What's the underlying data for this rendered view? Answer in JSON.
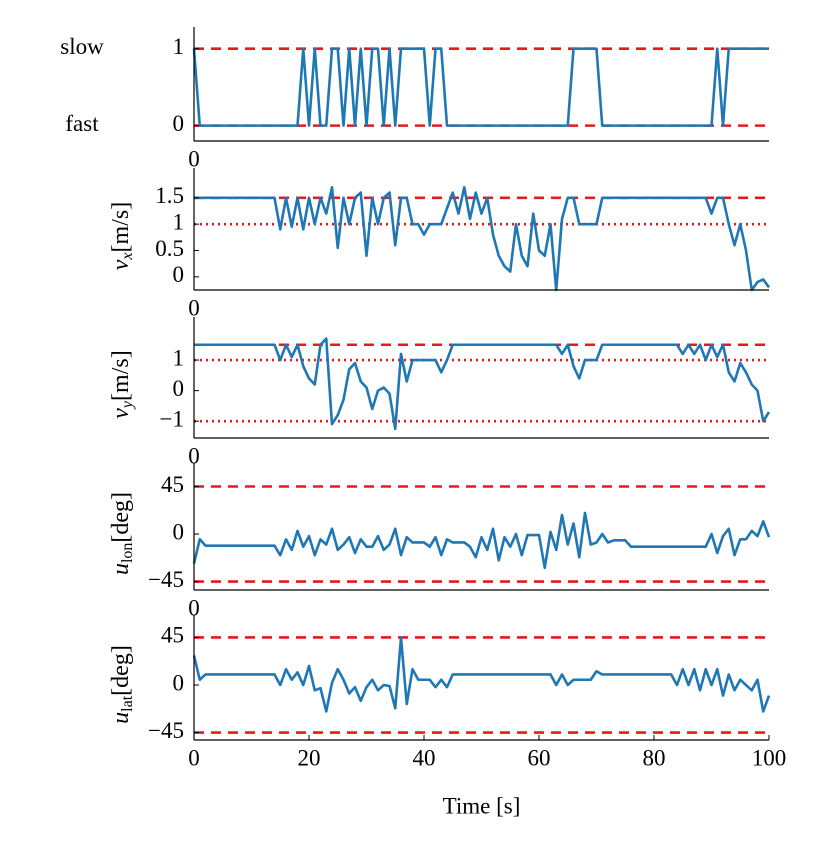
{
  "chart_data": [
    {
      "type": "line",
      "xlim": [
        0,
        100
      ],
      "xticks": [
        0
      ],
      "ylim": [
        -0.2,
        1.1
      ],
      "yticks": [
        0,
        1
      ],
      "state_labels": [
        {
          "value": 0,
          "label": "fast"
        },
        {
          "value": 1,
          "label": "slow"
        }
      ],
      "hlines": [
        {
          "value": 0,
          "style": "dashed"
        },
        {
          "value": 1,
          "style": "dashed"
        }
      ],
      "ref_color": "#e8191c",
      "x": [
        0,
        1,
        2,
        3,
        4,
        5,
        6,
        7,
        8,
        9,
        10,
        11,
        12,
        13,
        14,
        15,
        16,
        17,
        18,
        19,
        20,
        21,
        22,
        23,
        24,
        25,
        26,
        27,
        28,
        29,
        30,
        31,
        32,
        33,
        34,
        35,
        36,
        37,
        38,
        39,
        40,
        41,
        42,
        43,
        44,
        45,
        46,
        47,
        48,
        49,
        50,
        51,
        52,
        53,
        54,
        55,
        56,
        57,
        58,
        59,
        60,
        61,
        62,
        63,
        64,
        65,
        66,
        67,
        68,
        69,
        70,
        71,
        72,
        73,
        74,
        75,
        76,
        77,
        78,
        79,
        80,
        81,
        82,
        83,
        84,
        85,
        86,
        87,
        88,
        89,
        90,
        91,
        92,
        93,
        94,
        95,
        96,
        97,
        98,
        99,
        100
      ],
      "series": [
        {
          "color": "#1f77b4",
          "values": [
            1,
            0,
            0,
            0,
            0,
            0,
            0,
            0,
            0,
            0,
            0,
            0,
            0,
            0,
            0,
            0,
            0,
            0,
            0,
            1,
            0,
            1,
            0,
            0,
            1,
            1,
            0,
            1,
            0,
            1,
            0,
            1,
            1,
            0,
            1,
            0,
            1,
            1,
            1,
            1,
            1,
            0,
            1,
            1,
            0,
            0,
            0,
            0,
            0,
            0,
            0,
            0,
            0,
            0,
            0,
            0,
            0,
            0,
            0,
            0,
            0,
            0,
            0,
            0,
            0,
            0,
            1,
            1,
            1,
            1,
            1,
            0,
            0,
            0,
            0,
            0,
            0,
            0,
            0,
            0,
            0,
            0,
            0,
            0,
            0,
            0,
            0,
            0,
            0,
            0,
            0,
            1,
            0,
            1,
            1,
            1,
            1,
            1,
            1,
            1,
            1
          ]
        }
      ]
    },
    {
      "type": "line",
      "xlim": [
        0,
        100
      ],
      "xticks": [
        0
      ],
      "ylim": [
        -0.25,
        1.8
      ],
      "yticks": [
        0,
        0.5,
        1,
        1.5
      ],
      "ylabel": {
        "symbol": "v",
        "sub": "x",
        "unit": "[m/s]"
      },
      "hlines": [
        {
          "value": 1.5,
          "style": "dashed"
        },
        {
          "value": 1,
          "style": "dotted"
        }
      ],
      "ref_color": "#e8191c",
      "x": [
        0,
        1,
        2,
        3,
        4,
        5,
        6,
        7,
        8,
        9,
        10,
        11,
        12,
        13,
        14,
        15,
        16,
        17,
        18,
        19,
        20,
        21,
        22,
        23,
        24,
        25,
        26,
        27,
        28,
        29,
        30,
        31,
        32,
        33,
        34,
        35,
        36,
        37,
        38,
        39,
        40,
        41,
        42,
        43,
        44,
        45,
        46,
        47,
        48,
        49,
        50,
        51,
        52,
        53,
        54,
        55,
        56,
        57,
        58,
        59,
        60,
        61,
        62,
        63,
        64,
        65,
        66,
        67,
        68,
        69,
        70,
        71,
        72,
        73,
        74,
        75,
        76,
        77,
        78,
        79,
        80,
        81,
        82,
        83,
        84,
        85,
        86,
        87,
        88,
        89,
        90,
        91,
        92,
        93,
        94,
        95,
        96,
        97,
        98,
        99,
        100
      ],
      "series": [
        {
          "color": "#1f77b4",
          "values": [
            1.5,
            1.5,
            1.5,
            1.5,
            1.5,
            1.5,
            1.5,
            1.5,
            1.5,
            1.5,
            1.5,
            1.5,
            1.5,
            1.5,
            1.5,
            0.9,
            1.5,
            0.95,
            1.5,
            0.9,
            1.5,
            1.0,
            1.5,
            1.2,
            1.7,
            0.55,
            1.5,
            1.0,
            1.5,
            1.6,
            0.4,
            1.5,
            1.0,
            1.5,
            1.6,
            0.6,
            1.5,
            1.5,
            1.0,
            1.0,
            0.8,
            1.0,
            1.0,
            1.0,
            1.3,
            1.6,
            1.2,
            1.7,
            1.1,
            1.6,
            1.2,
            1.5,
            0.8,
            0.4,
            0.2,
            0.1,
            1.0,
            0.4,
            0.2,
            1.2,
            0.5,
            0.4,
            1.0,
            -0.25,
            1.1,
            1.5,
            1.5,
            1.0,
            1.0,
            1.0,
            1.0,
            1.5,
            1.5,
            1.5,
            1.5,
            1.5,
            1.5,
            1.5,
            1.5,
            1.5,
            1.5,
            1.5,
            1.5,
            1.5,
            1.5,
            1.5,
            1.5,
            1.5,
            1.5,
            1.5,
            1.2,
            1.5,
            1.5,
            1.0,
            0.6,
            1.0,
            0.5,
            -0.25,
            -0.1,
            -0.05,
            -0.2
          ]
        }
      ]
    },
    {
      "type": "line",
      "xlim": [
        0,
        100
      ],
      "xticks": [
        0
      ],
      "ylim": [
        -1.55,
        1.95
      ],
      "yticks": [
        {
          "value": -1,
          "label": "−1"
        },
        0,
        1
      ],
      "ylabel": {
        "symbol": "v",
        "sub": "y",
        "unit": "[m/s]"
      },
      "hlines": [
        {
          "value": 1.5,
          "style": "dashed"
        },
        {
          "value": 1,
          "style": "dotted"
        },
        {
          "value": -1,
          "style": "dotted"
        }
      ],
      "ref_color": "#e8191c",
      "x": [
        0,
        1,
        2,
        3,
        4,
        5,
        6,
        7,
        8,
        9,
        10,
        11,
        12,
        13,
        14,
        15,
        16,
        17,
        18,
        19,
        20,
        21,
        22,
        23,
        24,
        25,
        26,
        27,
        28,
        29,
        30,
        31,
        32,
        33,
        34,
        35,
        36,
        37,
        38,
        39,
        40,
        41,
        42,
        43,
        44,
        45,
        46,
        47,
        48,
        49,
        50,
        51,
        52,
        53,
        54,
        55,
        56,
        57,
        58,
        59,
        60,
        61,
        62,
        63,
        64,
        65,
        66,
        67,
        68,
        69,
        70,
        71,
        72,
        73,
        74,
        75,
        76,
        77,
        78,
        79,
        80,
        81,
        82,
        83,
        84,
        85,
        86,
        87,
        88,
        89,
        90,
        91,
        92,
        93,
        94,
        95,
        96,
        97,
        98,
        99,
        100
      ],
      "series": [
        {
          "color": "#1f77b4",
          "values": [
            1.5,
            1.5,
            1.5,
            1.5,
            1.5,
            1.5,
            1.5,
            1.5,
            1.5,
            1.5,
            1.5,
            1.5,
            1.5,
            1.5,
            1.5,
            1.0,
            1.5,
            1.1,
            1.5,
            0.8,
            0.4,
            0.2,
            1.5,
            1.7,
            -1.1,
            -0.8,
            -0.3,
            0.7,
            0.9,
            0.3,
            0.1,
            -0.6,
            0.0,
            0.1,
            -0.1,
            -1.25,
            1.2,
            0.3,
            1.0,
            1.0,
            1.0,
            1.0,
            1.0,
            0.6,
            1.0,
            1.5,
            1.5,
            1.5,
            1.5,
            1.5,
            1.5,
            1.5,
            1.5,
            1.5,
            1.5,
            1.5,
            1.5,
            1.5,
            1.5,
            1.5,
            1.5,
            1.5,
            1.5,
            1.5,
            1.2,
            1.5,
            0.8,
            0.4,
            1.0,
            1.0,
            1.0,
            1.5,
            1.5,
            1.5,
            1.5,
            1.5,
            1.5,
            1.5,
            1.5,
            1.5,
            1.5,
            1.5,
            1.5,
            1.5,
            1.5,
            1.2,
            1.5,
            1.2,
            1.5,
            1.0,
            1.5,
            1.1,
            1.5,
            0.6,
            0.3,
            0.9,
            0.6,
            0.2,
            0.0,
            -1.0,
            -0.7
          ]
        }
      ]
    },
    {
      "type": "line",
      "xlim": [
        0,
        100
      ],
      "xticks": [
        0
      ],
      "ylim": [
        -53,
        54
      ],
      "yticks": [
        {
          "value": -45,
          "label": "−45"
        },
        0,
        45
      ],
      "ylabel": {
        "symbol": "u",
        "sub": "lon",
        "unit": "[deg]"
      },
      "hlines": [
        {
          "value": 45,
          "style": "dashed"
        },
        {
          "value": -45,
          "style": "dashed"
        }
      ],
      "ref_color": "#e8191c",
      "x": [
        0,
        1,
        2,
        3,
        4,
        5,
        6,
        7,
        8,
        9,
        10,
        11,
        12,
        13,
        14,
        15,
        16,
        17,
        18,
        19,
        20,
        21,
        22,
        23,
        24,
        25,
        26,
        27,
        28,
        29,
        30,
        31,
        32,
        33,
        34,
        35,
        36,
        37,
        38,
        39,
        40,
        41,
        42,
        43,
        44,
        45,
        46,
        47,
        48,
        49,
        50,
        51,
        52,
        53,
        54,
        55,
        56,
        57,
        58,
        59,
        60,
        61,
        62,
        63,
        64,
        65,
        66,
        67,
        68,
        69,
        70,
        71,
        72,
        73,
        74,
        75,
        76,
        77,
        78,
        79,
        80,
        81,
        82,
        83,
        84,
        85,
        86,
        87,
        88,
        89,
        90,
        91,
        92,
        93,
        94,
        95,
        96,
        97,
        98,
        99,
        100
      ],
      "series": [
        {
          "color": "#1f77b4",
          "values": [
            -28,
            -5,
            -11,
            -11,
            -11,
            -11,
            -11,
            -11,
            -11,
            -11,
            -11,
            -11,
            -11,
            -11,
            -11,
            -20,
            -5,
            -15,
            3,
            -12,
            -2,
            -20,
            -5,
            -10,
            5,
            -15,
            -10,
            -3,
            -18,
            -5,
            -12,
            -12,
            -2,
            -15,
            -10,
            5,
            -20,
            -3,
            -8,
            -8,
            -8,
            -12,
            -3,
            -20,
            -5,
            -8,
            -8,
            -8,
            -12,
            -22,
            -3,
            -15,
            5,
            -25,
            -3,
            -12,
            0,
            -20,
            -1,
            -1,
            -1,
            -32,
            2,
            -15,
            18,
            -10,
            10,
            -22,
            20,
            -10,
            -8,
            0,
            -8,
            -6,
            -6,
            -6,
            -12,
            -12,
            -12,
            -12,
            -12,
            -12,
            -12,
            -12,
            -12,
            -12,
            -12,
            -12,
            -12,
            -12,
            0,
            -18,
            -2,
            5,
            -20,
            -5,
            -5,
            3,
            -2,
            12,
            -3
          ]
        }
      ]
    },
    {
      "type": "line",
      "xlim": [
        0,
        100
      ],
      "xticks": [
        0,
        20,
        40,
        60,
        80,
        100
      ],
      "xlabel": "Time [s]",
      "ylim": [
        -52,
        53
      ],
      "yticks": [
        {
          "value": -45,
          "label": "−45"
        },
        0,
        45
      ],
      "ylabel": {
        "symbol": "u",
        "sub": "lat",
        "unit": "[deg]"
      },
      "hlines": [
        {
          "value": 45,
          "style": "dashed"
        },
        {
          "value": -45,
          "style": "dashed"
        }
      ],
      "ref_color": "#e8191c",
      "x": [
        0,
        1,
        2,
        3,
        4,
        5,
        6,
        7,
        8,
        9,
        10,
        11,
        12,
        13,
        14,
        15,
        16,
        17,
        18,
        19,
        20,
        21,
        22,
        23,
        24,
        25,
        26,
        27,
        28,
        29,
        30,
        31,
        32,
        33,
        34,
        35,
        36,
        37,
        38,
        39,
        40,
        41,
        42,
        43,
        44,
        45,
        46,
        47,
        48,
        49,
        50,
        51,
        52,
        53,
        54,
        55,
        56,
        57,
        58,
        59,
        60,
        61,
        62,
        63,
        64,
        65,
        66,
        67,
        68,
        69,
        70,
        71,
        72,
        73,
        74,
        75,
        76,
        77,
        78,
        79,
        80,
        81,
        82,
        83,
        84,
        85,
        86,
        87,
        88,
        89,
        90,
        91,
        92,
        93,
        94,
        95,
        96,
        97,
        98,
        99,
        100
      ],
      "series": [
        {
          "color": "#1f77b4",
          "values": [
            28,
            5,
            10,
            10,
            10,
            10,
            10,
            10,
            10,
            10,
            10,
            10,
            10,
            10,
            10,
            0,
            15,
            5,
            12,
            0,
            18,
            -5,
            -3,
            -25,
            2,
            15,
            5,
            -8,
            -2,
            -15,
            -2,
            5,
            -5,
            0,
            -1,
            -22,
            45,
            -18,
            15,
            5,
            5,
            5,
            -2,
            5,
            -2,
            10,
            10,
            10,
            10,
            10,
            10,
            10,
            10,
            10,
            10,
            10,
            10,
            10,
            10,
            10,
            10,
            10,
            10,
            0,
            10,
            0,
            5,
            5,
            5,
            5,
            13,
            10,
            10,
            10,
            10,
            10,
            10,
            10,
            10,
            10,
            10,
            10,
            10,
            10,
            0,
            15,
            0,
            15,
            -5,
            15,
            0,
            15,
            -10,
            10,
            -5,
            5,
            0,
            -5,
            5,
            -25,
            -10
          ]
        }
      ]
    }
  ]
}
